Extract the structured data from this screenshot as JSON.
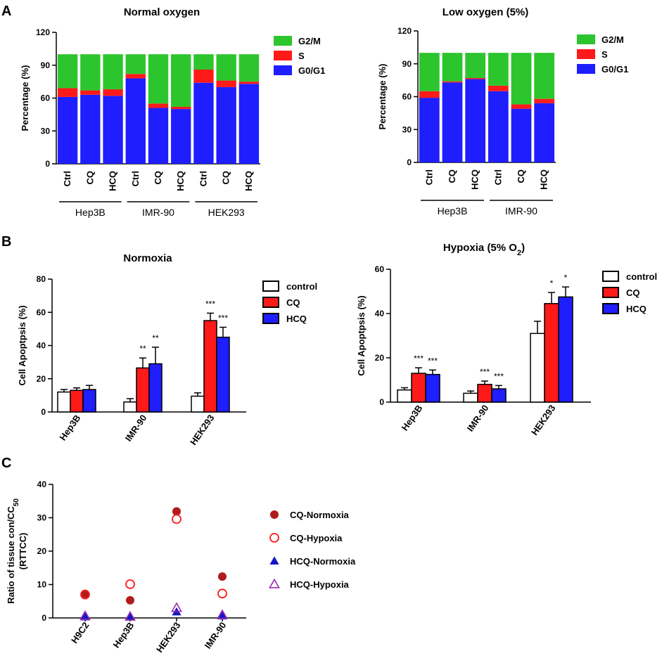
{
  "panels": {
    "A": "A",
    "B": "B",
    "C": "C"
  },
  "colors": {
    "g2m": "#2dc52d",
    "s": "#ff1a1a",
    "g0g1": "#1e1eff",
    "control": "#ffffff",
    "cq": "#ff1a1a",
    "hcq": "#1e1eff",
    "cq_normoxia": "#b01c1c",
    "cq_hypoxia": "#ff1a1a",
    "hcq_normoxia": "#1515c8",
    "hcq_hypoxia": "#9a2bb0"
  },
  "chart_data": [
    {
      "id": "A1",
      "type": "bar",
      "stacked": true,
      "title": "Normal oxygen",
      "ylabel": "Percentage (%)",
      "ylim": [
        0,
        120
      ],
      "yticks": [
        0,
        30,
        60,
        90,
        120
      ],
      "categories": [
        "Ctrl",
        "CQ",
        "HCQ",
        "Ctrl",
        "CQ",
        "HCQ",
        "Ctrl",
        "CQ",
        "HCQ"
      ],
      "groups": [
        {
          "label": "Hep3B",
          "size": 3
        },
        {
          "label": "IMR-90",
          "size": 3
        },
        {
          "label": "HEK293",
          "size": 3
        }
      ],
      "legend": [
        "G2/M",
        "S",
        "G0/G1"
      ],
      "series": [
        {
          "name": "G0/G1",
          "values": [
            61,
            63,
            62,
            78,
            51,
            50,
            74,
            70,
            73
          ]
        },
        {
          "name": "S",
          "values": [
            8,
            4,
            6,
            4,
            4,
            2,
            12,
            6,
            2
          ]
        },
        {
          "name": "G2/M",
          "values": [
            31,
            33,
            32,
            18,
            45,
            48,
            14,
            24,
            25
          ]
        }
      ]
    },
    {
      "id": "A2",
      "type": "bar",
      "stacked": true,
      "title": "Low oxygen (5%)",
      "ylabel": "Percentage (%)",
      "ylim": [
        0,
        120
      ],
      "yticks": [
        0,
        30,
        60,
        90,
        120
      ],
      "categories": [
        "Ctrl",
        "CQ",
        "HCQ",
        "Ctrl",
        "CQ",
        "HCQ"
      ],
      "groups": [
        {
          "label": "Hep3B",
          "size": 3
        },
        {
          "label": "IMR-90",
          "size": 3
        }
      ],
      "legend": [
        "G2/M",
        "S",
        "G0/G1"
      ],
      "series": [
        {
          "name": "G0/G1",
          "values": [
            59,
            73,
            76,
            65,
            49,
            54
          ]
        },
        {
          "name": "S",
          "values": [
            6,
            1,
            1,
            5,
            4,
            4
          ]
        },
        {
          "name": "G2/M",
          "values": [
            35,
            26,
            23,
            30,
            47,
            42
          ]
        }
      ]
    },
    {
      "id": "B1",
      "type": "bar",
      "grouped": true,
      "title": "Normoxia",
      "ylabel": "Cell Apoptpsis (%)",
      "ylim": [
        0,
        80
      ],
      "yticks": [
        0,
        20,
        40,
        60,
        80
      ],
      "categories": [
        "Hep3B",
        "IMR-90",
        "HEK293"
      ],
      "legend": [
        "control",
        "CQ",
        "HCQ"
      ],
      "series": [
        {
          "name": "control",
          "values": [
            12,
            6,
            9.5
          ],
          "errors": [
            1.5,
            2,
            2
          ],
          "stars": [
            "",
            "",
            ""
          ]
        },
        {
          "name": "CQ",
          "values": [
            13,
            26.5,
            55
          ],
          "errors": [
            1.5,
            6,
            4.5
          ],
          "stars": [
            "",
            "**",
            "***"
          ]
        },
        {
          "name": "HCQ",
          "values": [
            13.5,
            29,
            45
          ],
          "errors": [
            2.5,
            10,
            6
          ],
          "stars": [
            "",
            "**",
            "***"
          ]
        }
      ]
    },
    {
      "id": "B2",
      "type": "bar",
      "grouped": true,
      "title": "Hypoxia (5% O",
      "title_sub": "2",
      "title_end": ")",
      "ylabel": "Cell Apoptpsis (%)",
      "ylim": [
        0,
        60
      ],
      "yticks": [
        0,
        20,
        40,
        60
      ],
      "categories": [
        "Hep3B",
        "IMR-90",
        "HEK293"
      ],
      "legend": [
        "control",
        "CQ",
        "HCQ"
      ],
      "series": [
        {
          "name": "control",
          "values": [
            5.5,
            4,
            31
          ],
          "errors": [
            1,
            1,
            5.5
          ],
          "stars": [
            "",
            "",
            ""
          ]
        },
        {
          "name": "CQ",
          "values": [
            13,
            8,
            44.5
          ],
          "errors": [
            2.5,
            1.5,
            5
          ],
          "stars": [
            "***",
            "***",
            "*"
          ]
        },
        {
          "name": "HCQ",
          "values": [
            12.5,
            6,
            47.5
          ],
          "errors": [
            2,
            1.5,
            4.5
          ],
          "stars": [
            "***",
            "***",
            "*"
          ]
        }
      ]
    },
    {
      "id": "C",
      "type": "scatter",
      "ylabel_line1": "Ratio of tissue con/CC",
      "ylabel_sub": "50",
      "ylabel_line2": "(RTTCC)",
      "ylim": [
        0,
        40
      ],
      "yticks": [
        0,
        10,
        20,
        30,
        40
      ],
      "categories": [
        "H9C2",
        "Hep3B",
        "HEK293",
        "IMR-90"
      ],
      "legend": [
        "CQ-Normoxia",
        "CQ-Hypoxia",
        "HCQ-Normoxia",
        "HCQ-Hypoxia"
      ],
      "series": [
        {
          "name": "CQ-Normoxia",
          "marker": "filled-circle",
          "values": [
            7.2,
            5.3,
            31.9,
            12.4
          ]
        },
        {
          "name": "CQ-Hypoxia",
          "marker": "open-circle",
          "values": [
            7.0,
            10.1,
            29.6,
            7.3
          ]
        },
        {
          "name": "HCQ-Normoxia",
          "marker": "filled-triangle",
          "values": [
            0.3,
            0.3,
            1.8,
            0.6
          ]
        },
        {
          "name": "HCQ-Hypoxia",
          "marker": "open-triangle",
          "values": [
            0.6,
            0.4,
            3.0,
            0.9
          ]
        }
      ]
    }
  ]
}
